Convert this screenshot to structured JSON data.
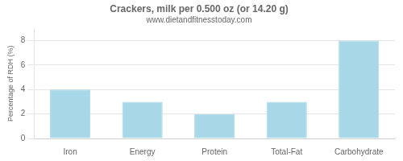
{
  "chart_data": {
    "type": "bar",
    "title": "Crackers, milk per 0.500 oz (or 14.20 g)",
    "subtitle": "www.dietandfitnesstoday.com",
    "categories": [
      "Iron",
      "Energy",
      "Protein",
      "Total-Fat",
      "Carbohydrate"
    ],
    "values": [
      4.0,
      3.0,
      2.0,
      3.0,
      8.0
    ],
    "color": "#a8d8e8",
    "ylabel": "Percentage of RDH (%)",
    "ylim": [
      0,
      9
    ],
    "yticks": [
      0,
      2,
      4,
      6,
      8
    ],
    "grid": true
  }
}
